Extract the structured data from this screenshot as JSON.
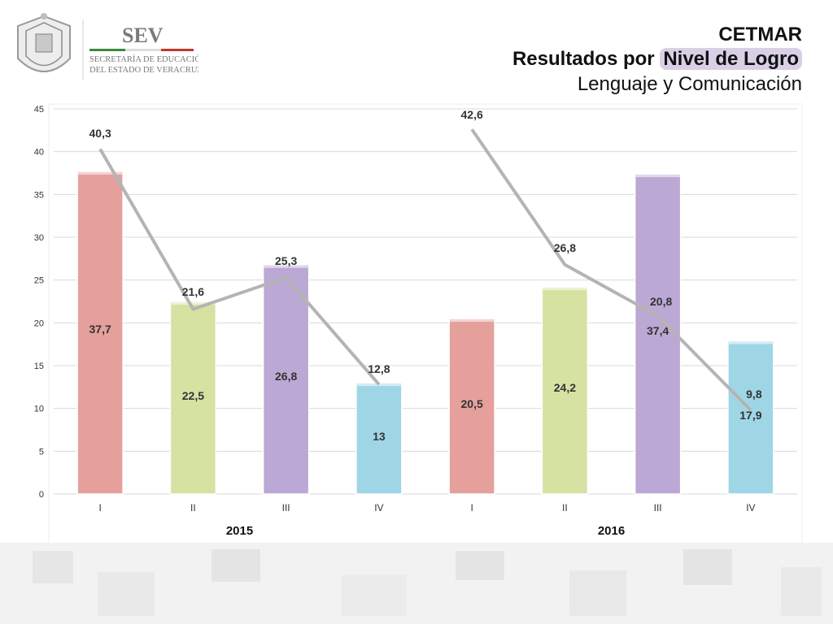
{
  "header": {
    "org_main": "SEV",
    "org_line1": "SECRETARÍA DE EDUCACIÓN",
    "org_line2": "DEL ESTADO DE VERACRUZ",
    "title": "CETMAR",
    "subtitle_prefix": "Resultados por ",
    "subtitle_highlight": "Nivel de Logro",
    "subject": "Lenguaje y Comunicación"
  },
  "colors": {
    "level_I": "#e5a09c",
    "level_II": "#d6e2a2",
    "level_III": "#bca8d4",
    "level_IV": "#9fd6e6",
    "line": "#b4b4b4",
    "grid": "#d9d9d9"
  },
  "chart_data": {
    "type": "bar",
    "title": "",
    "xlabel": "",
    "ylabel": "",
    "ylim": [
      0,
      45
    ],
    "yticks": [
      "0",
      "5",
      "10",
      "15",
      "20",
      "25",
      "30",
      "35",
      "40",
      "45"
    ],
    "grid": true,
    "groups": [
      {
        "label": "2015",
        "categories": [
          "I",
          "II",
          "III",
          "IV"
        ]
      },
      {
        "label": "2016",
        "categories": [
          "I",
          "II",
          "III",
          "IV"
        ]
      }
    ],
    "categories": [
      "I",
      "II",
      "III",
      "IV",
      "I",
      "II",
      "III",
      "IV"
    ],
    "series": [
      {
        "kind": "bar",
        "values": [
          37.7,
          22.5,
          26.8,
          13,
          20.5,
          24.2,
          37.4,
          17.9
        ],
        "labels": [
          "37,7",
          "22,5",
          "26,8",
          "13",
          "20,5",
          "24,2",
          "37,4",
          "17,9"
        ]
      },
      {
        "kind": "line",
        "values": [
          40.3,
          21.6,
          25.3,
          12.8,
          42.6,
          26.8,
          20.8,
          9.8
        ],
        "labels": [
          "40,3",
          "21,6",
          "25,3",
          "12,8",
          "42,6",
          "26,8",
          "20,8",
          "9,8"
        ]
      }
    ]
  }
}
